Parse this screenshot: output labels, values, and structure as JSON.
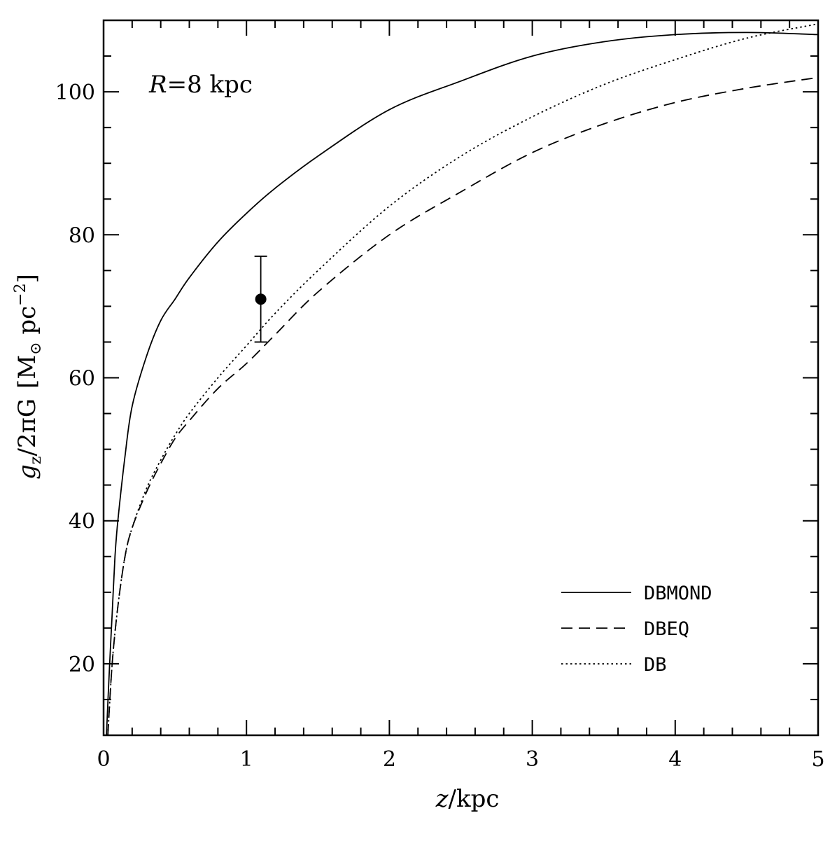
{
  "chart_data": {
    "type": "line",
    "annotation": {
      "var": "R",
      "eq": "=",
      "value": "8 kpc"
    },
    "xlabel": {
      "var": "z",
      "unit": "/kpc"
    },
    "ylabel": {
      "var": "g",
      "sub": "z",
      "rest": "/2πG",
      "unit_open": "[M",
      "unit_sun": "⊙",
      "unit_mid": " pc",
      "unit_sup": "−2",
      "unit_close": "]"
    },
    "xlim": [
      0,
      5
    ],
    "ylim": [
      10,
      110
    ],
    "x_ticks": [
      0,
      1,
      2,
      3,
      4,
      5
    ],
    "x_minor_step": 0.2,
    "y_ticks": [
      20,
      40,
      60,
      80,
      100
    ],
    "y_minor_step": 5,
    "legend_position": "bottom-right",
    "series": [
      {
        "name": "DBMOND",
        "style": "solid",
        "x": [
          0.02,
          0.04,
          0.06,
          0.08,
          0.1,
          0.15,
          0.2,
          0.3,
          0.4,
          0.5,
          0.6,
          0.8,
          1.0,
          1.2,
          1.5,
          2.0,
          2.5,
          3.0,
          3.5,
          4.0,
          4.5,
          5.0
        ],
        "y": [
          10,
          19,
          27,
          35,
          40,
          49,
          56,
          63,
          68,
          71,
          74,
          79,
          83,
          86.5,
          91,
          97.5,
          101.5,
          105,
          107,
          108,
          108.3,
          108
        ]
      },
      {
        "name": "DBEQ",
        "style": "dashed",
        "x": [
          0.03,
          0.06,
          0.1,
          0.15,
          0.2,
          0.3,
          0.4,
          0.5,
          0.6,
          0.8,
          1.0,
          1.2,
          1.5,
          2.0,
          2.5,
          3.0,
          3.5,
          4.0,
          4.5,
          5.0
        ],
        "y": [
          10,
          20,
          28,
          35,
          39,
          44,
          48,
          51.5,
          54,
          58.5,
          62,
          66,
          72,
          80,
          86,
          91.5,
          95.5,
          98.5,
          100.5,
          102
        ]
      },
      {
        "name": "DB",
        "style": "dotted",
        "x": [
          0.03,
          0.06,
          0.1,
          0.15,
          0.2,
          0.3,
          0.4,
          0.5,
          0.6,
          0.8,
          1.0,
          1.2,
          1.5,
          2.0,
          2.5,
          3.0,
          3.5,
          4.0,
          4.5,
          5.0
        ],
        "y": [
          10,
          20,
          28,
          35,
          39,
          44.5,
          48.5,
          52,
          55,
          60,
          64.5,
          69,
          75,
          84,
          91,
          96.5,
          101,
          104.5,
          107.5,
          109.5
        ]
      }
    ],
    "point": {
      "x": 1.1,
      "y": 71,
      "err": 6
    }
  }
}
